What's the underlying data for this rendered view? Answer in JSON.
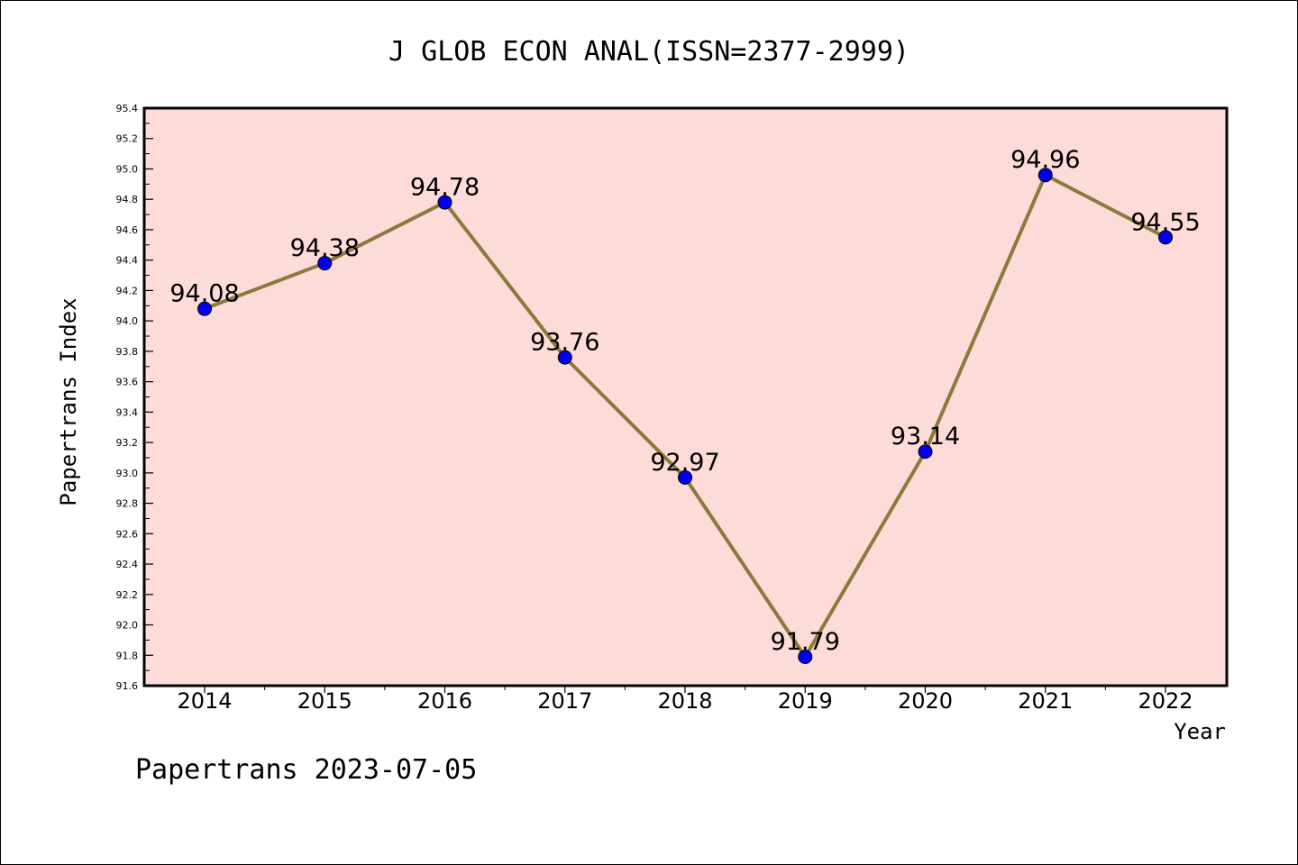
{
  "chart_data": {
    "type": "line",
    "title": "J GLOB ECON ANAL(ISSN=2377-2999)",
    "xlabel": "Year",
    "ylabel": "Papertrans Index",
    "footer": "Papertrans 2023-07-05",
    "categories": [
      "2014",
      "2015",
      "2016",
      "2017",
      "2018",
      "2019",
      "2020",
      "2021",
      "2022"
    ],
    "series": [
      {
        "values": [
          94.08,
          94.38,
          94.78,
          93.76,
          92.97,
          91.79,
          93.14,
          94.96,
          94.55
        ],
        "labels": [
          "94.08",
          "94.38",
          "94.78",
          "93.76",
          "92.97",
          "91.79",
          "93.14",
          "94.96",
          "94.55"
        ]
      }
    ],
    "ylim": [
      91.6,
      95.4
    ],
    "yticks": [
      "91.6",
      "91.8",
      "92.0",
      "92.2",
      "92.4",
      "92.6",
      "92.8",
      "93.0",
      "93.2",
      "93.4",
      "93.6",
      "93.8",
      "94.0",
      "94.2",
      "94.4",
      "94.6",
      "94.8",
      "95.0",
      "95.2",
      "95.4"
    ],
    "grid": false,
    "legend": "none",
    "colors": {
      "plot_background": "#fddbd8",
      "line": "#8c7a3a",
      "marker": "#0000ee"
    }
  }
}
